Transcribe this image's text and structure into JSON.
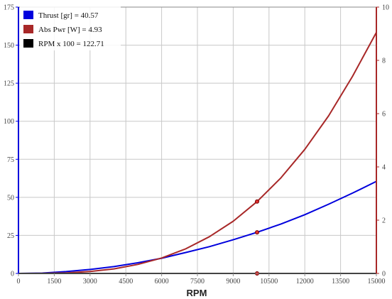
{
  "colors": {
    "thrust": "#0000dd",
    "power": "#a82828",
    "rpm": "#000000",
    "grid": "#c8c8c8",
    "frame": "#888888"
  },
  "chart_data": {
    "type": "line",
    "xlabel": "RPM",
    "x_ticks": [
      "0",
      "1500",
      "3000",
      "4500",
      "6000",
      "7500",
      "9000",
      "10500",
      "12000",
      "13500",
      "15000"
    ],
    "y_left_ticks": [
      "0",
      "25",
      "50",
      "75",
      "100",
      "125",
      "150",
      "175"
    ],
    "y_right_ticks": [
      "0",
      "2",
      "4",
      "6",
      "8",
      "10"
    ],
    "xlim": [
      0,
      15000
    ],
    "ylim_left": [
      0,
      175
    ],
    "ylim_right": [
      0,
      10
    ],
    "grid": true,
    "legend_position": "top-left",
    "x": [
      0,
      1000,
      2000,
      3000,
      4000,
      5000,
      6000,
      7000,
      8000,
      9000,
      10000,
      11000,
      12000,
      13000,
      14000,
      15000
    ],
    "series": [
      {
        "key": "thrust",
        "axis": "left",
        "legend_label": "Thrust [gr] = 40.57",
        "values": [
          0,
          0.25,
          1.2,
          2.6,
          4.5,
          7.0,
          10.0,
          13.7,
          17.6,
          22.1,
          27.0,
          32.5,
          38.6,
          45.5,
          52.8,
          60.5
        ]
      },
      {
        "key": "power",
        "axis": "right",
        "legend_label": "Abs Pwr [W] = 4.93",
        "values": [
          0,
          0.003,
          0.022,
          0.073,
          0.17,
          0.34,
          0.58,
          0.92,
          1.38,
          1.96,
          2.7,
          3.59,
          4.66,
          5.92,
          7.4,
          9.05
        ]
      },
      {
        "key": "rpm",
        "axis": "left",
        "legend_label": "RPM x 100 = 122.71",
        "values": [
          0,
          0,
          0,
          0,
          0,
          0,
          0,
          0,
          0,
          0,
          0,
          0,
          0,
          0,
          0,
          0
        ]
      }
    ],
    "markers": [
      {
        "series": "thrust",
        "x": 10000,
        "y": 27.0
      },
      {
        "series": "power",
        "x": 10000,
        "y": 2.7
      },
      {
        "series": "rpm",
        "x": 10000,
        "y": 0
      }
    ]
  }
}
